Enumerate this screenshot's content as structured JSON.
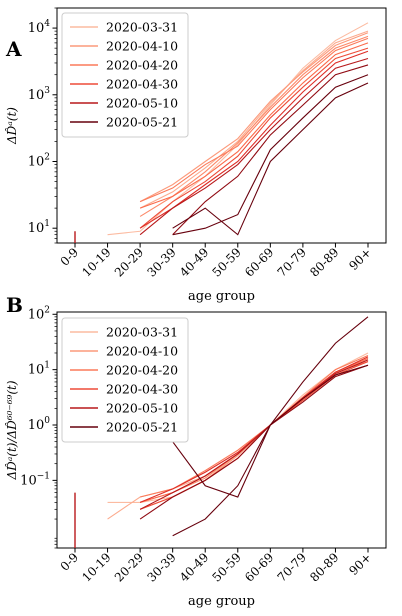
{
  "chart_data": [
    {
      "type": "line",
      "panel_label": "A",
      "ylabel": "ΔD̂ᵃ(t)",
      "xlabel": "age group",
      "categories": [
        "0-9",
        "10-19",
        "20-29",
        "30-39",
        "40-49",
        "50-59",
        "60-69",
        "70-79",
        "80-89",
        "90+"
      ],
      "yscale": "log",
      "ylim": [
        6,
        20000
      ],
      "yticks": [
        {
          "v": 10,
          "exp": "1"
        },
        {
          "v": 100,
          "exp": "2"
        },
        {
          "v": 1000,
          "exp": "3"
        },
        {
          "v": 10000,
          "exp": "4"
        }
      ],
      "legend": [
        "2020-03-31",
        "2020-04-10",
        "2020-04-20",
        "2020-04-30",
        "2020-05-10",
        "2020-05-21"
      ],
      "legend_position": "top-left",
      "series": [
        {
          "date_index": 0,
          "values": [
            null,
            8,
            9,
            25,
            60,
            180,
            700,
            2500,
            6500,
            12000
          ]
        },
        {
          "date_index": 0.5,
          "values": [
            null,
            null,
            20,
            35,
            80,
            200,
            750,
            2300,
            6000,
            9000
          ]
        },
        {
          "date_index": 1,
          "values": [
            null,
            null,
            25,
            45,
            100,
            220,
            800,
            2200,
            5500,
            8500
          ]
        },
        {
          "date_index": 1.5,
          "values": [
            null,
            null,
            15,
            30,
            70,
            190,
            650,
            2000,
            5000,
            7500
          ]
        },
        {
          "date_index": 2,
          "values": [
            null,
            null,
            25,
            40,
            90,
            170,
            600,
            1800,
            4600,
            7000
          ]
        },
        {
          "date_index": 2.5,
          "values": [
            null,
            null,
            20,
            30,
            60,
            140,
            500,
            1500,
            4000,
            6000
          ]
        },
        {
          "date_index": 3,
          "values": [
            null,
            null,
            10,
            25,
            50,
            120,
            450,
            1300,
            3500,
            5000
          ]
        },
        {
          "date_index": 3.5,
          "values": [
            null,
            null,
            10,
            20,
            45,
            100,
            350,
            1100,
            3000,
            4500
          ]
        },
        {
          "date_index": 4,
          "values": [
            9,
            null,
            8,
            20,
            40,
            90,
            300,
            900,
            2500,
            3500
          ]
        },
        {
          "date_index": 4.5,
          "values": [
            null,
            null,
            null,
            8,
            25,
            60,
            250,
            700,
            2000,
            2800
          ]
        },
        {
          "date_index": 5,
          "values": [
            null,
            null,
            null,
            8,
            10,
            16,
            150,
            450,
            1300,
            2000
          ]
        },
        {
          "date_index": 5,
          "values": [
            null,
            null,
            null,
            10,
            20,
            8,
            100,
            300,
            900,
            1500
          ]
        }
      ]
    },
    {
      "type": "line",
      "panel_label": "B",
      "ylabel": "ΔD̂ᵃ(t)/ΔD̂⁶⁰⁻⁶⁹(t)",
      "xlabel": "age group",
      "categories": [
        "0-9",
        "10-19",
        "20-29",
        "30-39",
        "40-49",
        "50-59",
        "60-69",
        "70-79",
        "80-89",
        "90+"
      ],
      "yscale": "log",
      "ylim": [
        0.006,
        110
      ],
      "yticks": [
        {
          "v": 0.1,
          "exp": "−1"
        },
        {
          "v": 1,
          "exp": "0"
        },
        {
          "v": 10,
          "exp": "1"
        },
        {
          "v": 100,
          "exp": "2"
        }
      ],
      "legend": [
        "2020-03-31",
        "2020-04-10",
        "2020-04-20",
        "2020-04-30",
        "2020-05-10",
        "2020-05-21"
      ],
      "legend_position": "top-left",
      "series": [
        {
          "date_index": 0,
          "values": [
            null,
            0.04,
            0.04,
            0.05,
            0.1,
            0.3,
            1,
            3.5,
            10,
            20
          ]
        },
        {
          "date_index": 0.5,
          "values": [
            null,
            0.02,
            0.05,
            0.07,
            0.12,
            0.3,
            1,
            3,
            9,
            15
          ]
        },
        {
          "date_index": 1,
          "values": [
            null,
            null,
            0.03,
            0.05,
            0.1,
            0.28,
            1,
            2.8,
            8,
            12
          ]
        },
        {
          "date_index": 1.5,
          "values": [
            null,
            null,
            0.04,
            0.06,
            0.11,
            0.3,
            1,
            3,
            9,
            14
          ]
        },
        {
          "date_index": 2,
          "values": [
            null,
            null,
            0.05,
            0.07,
            0.15,
            0.35,
            1,
            3.2,
            10,
            18
          ]
        },
        {
          "date_index": 2.5,
          "values": [
            null,
            null,
            0.04,
            0.06,
            0.12,
            0.3,
            1,
            3,
            9,
            16
          ]
        },
        {
          "date_index": 3,
          "values": [
            null,
            null,
            0.03,
            0.05,
            0.1,
            0.25,
            1,
            2.8,
            8,
            14
          ]
        },
        {
          "date_index": 3.5,
          "values": [
            null,
            null,
            0.04,
            0.07,
            0.14,
            0.32,
            1,
            3.1,
            9,
            17
          ]
        },
        {
          "date_index": 4,
          "values": [
            0.06,
            null,
            0.03,
            0.06,
            0.12,
            0.3,
            1,
            3,
            8.5,
            15
          ]
        },
        {
          "date_index": 4.5,
          "values": [
            null,
            null,
            0.02,
            0.05,
            0.1,
            0.25,
            1,
            2.6,
            7.5,
            12
          ]
        },
        {
          "date_index": 5,
          "values": [
            null,
            null,
            null,
            0.5,
            0.08,
            0.05,
            1,
            6,
            30,
            90
          ]
        },
        {
          "date_index": 5,
          "values": [
            null,
            null,
            null,
            0.01,
            0.02,
            0.08,
            1,
            3,
            8,
            12
          ]
        }
      ]
    }
  ]
}
